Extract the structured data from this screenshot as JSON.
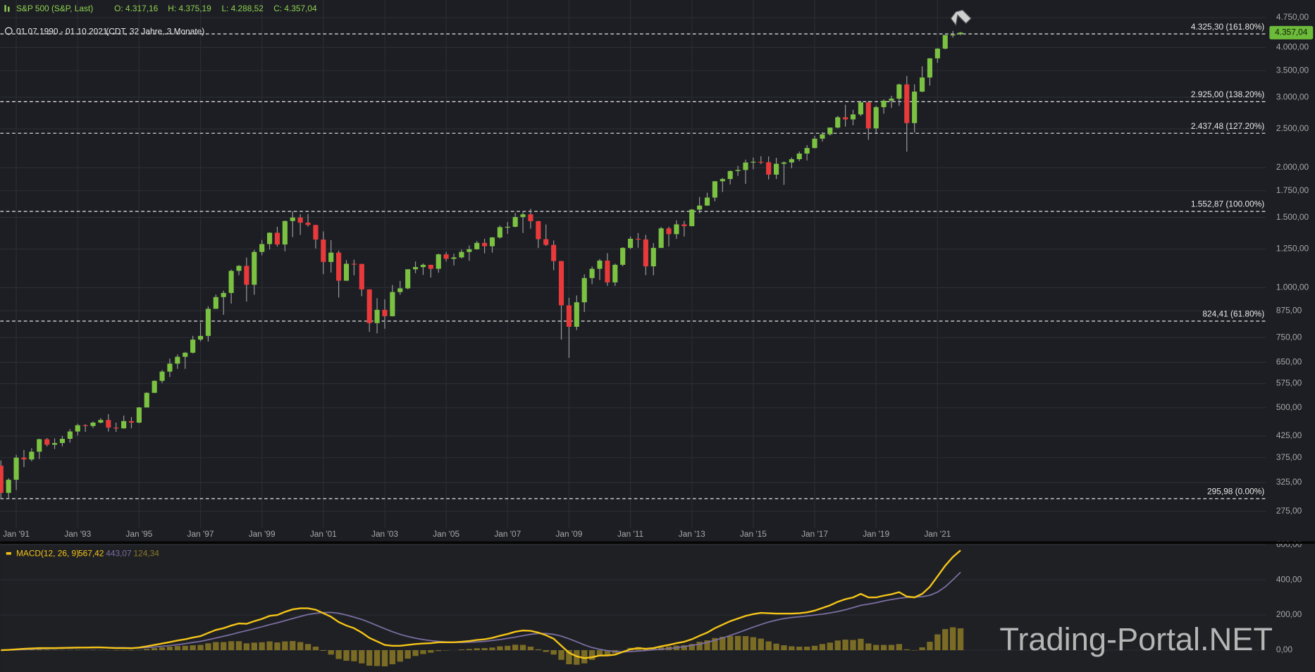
{
  "chart_data": [
    {
      "type": "candlestick",
      "title": "S&P 500 (S&P, Last)",
      "ohlc_labels": [
        "O: 4.317,16",
        "H: 4.375,19",
        "L: 4.288,52",
        "C: 4.357,04"
      ],
      "period": "01.07.1990 - 01.10.2021",
      "period_note": "(CDT, 32 Jahre, 3 Monate)",
      "last_price_label": "4.357,04",
      "up_color": "#7cc242",
      "down_color": "#e8393b",
      "grid": true,
      "log_scale": true,
      "xlim": [
        1990.48,
        2031.7
      ],
      "xticks": [
        {
          "value": 1991,
          "label": "Jan '91"
        },
        {
          "value": 1993,
          "label": "Jan '93"
        },
        {
          "value": 1995,
          "label": "Jan '95"
        },
        {
          "value": 1997,
          "label": "Jan '97"
        },
        {
          "value": 1999,
          "label": "Jan '99"
        },
        {
          "value": 2001,
          "label": "Jan '01"
        },
        {
          "value": 2003,
          "label": "Jan '03"
        },
        {
          "value": 2005,
          "label": "Jan '05"
        },
        {
          "value": 2007,
          "label": "Jan '07"
        },
        {
          "value": 2009,
          "label": "Jan '09"
        },
        {
          "value": 2011,
          "label": "Jan '11"
        },
        {
          "value": 2013,
          "label": "Jan '13"
        },
        {
          "value": 2015,
          "label": "Jan '15"
        },
        {
          "value": 2017,
          "label": "Jan '17"
        },
        {
          "value": 2019,
          "label": "Jan '19"
        },
        {
          "value": 2021,
          "label": "Jan '21"
        }
      ],
      "ylim": [
        250,
        5260
      ],
      "yticks": [
        {
          "value": 275,
          "label": "275,00"
        },
        {
          "value": 325,
          "label": "325,00"
        },
        {
          "value": 375,
          "label": "375,00"
        },
        {
          "value": 425,
          "label": "425,00"
        },
        {
          "value": 500,
          "label": "500,00"
        },
        {
          "value": 575,
          "label": "575,00"
        },
        {
          "value": 650,
          "label": "650,00"
        },
        {
          "value": 750,
          "label": "750,00"
        },
        {
          "value": 875,
          "label": "875,00"
        },
        {
          "value": 1000,
          "label": "1.000,00"
        },
        {
          "value": 1250,
          "label": "1.250,00"
        },
        {
          "value": 1500,
          "label": "1.500,00"
        },
        {
          "value": 1750,
          "label": "1.750,00"
        },
        {
          "value": 2000,
          "label": "2.000,00"
        },
        {
          "value": 2500,
          "label": "2.500,00"
        },
        {
          "value": 3000,
          "label": "3.000,00"
        },
        {
          "value": 3500,
          "label": "3.500,00"
        },
        {
          "value": 4000,
          "label": "4.000,00"
        },
        {
          "value": 4750,
          "label": "4.750,00"
        }
      ],
      "levels": [
        {
          "value": 4325.3,
          "label": "4.325,30 (161.80%)"
        },
        {
          "value": 2925,
          "label": "2.925,00 (138.20%)"
        },
        {
          "value": 2437.48,
          "label": "2.437,48 (127.20%)"
        },
        {
          "value": 1552.87,
          "label": "1.552,87 (100.00%)"
        },
        {
          "value": 824.41,
          "label": "824,41 (61.80%)"
        },
        {
          "value": 295.98,
          "label": "295,98 (0.00%)"
        }
      ],
      "x": [
        1990.5,
        1990.75,
        1991,
        1991.25,
        1991.5,
        1991.75,
        1992,
        1992.25,
        1992.5,
        1992.75,
        1993,
        1993.25,
        1993.5,
        1993.75,
        1994,
        1994.25,
        1994.5,
        1994.75,
        1995,
        1995.25,
        1995.5,
        1995.75,
        1996,
        1996.25,
        1996.5,
        1996.75,
        1997,
        1997.25,
        1997.5,
        1997.75,
        1998,
        1998.25,
        1998.5,
        1998.75,
        1999,
        1999.25,
        1999.5,
        1999.75,
        2000,
        2000.25,
        2000.5,
        2000.75,
        2001,
        2001.25,
        2001.5,
        2001.75,
        2002,
        2002.25,
        2002.5,
        2002.75,
        2003,
        2003.25,
        2003.5,
        2003.75,
        2004,
        2004.25,
        2004.5,
        2004.75,
        2005,
        2005.25,
        2005.5,
        2005.75,
        2006,
        2006.25,
        2006.5,
        2006.75,
        2007,
        2007.25,
        2007.5,
        2007.75,
        2008,
        2008.25,
        2008.5,
        2008.75,
        2009,
        2009.25,
        2009.5,
        2009.75,
        2010,
        2010.25,
        2010.5,
        2010.75,
        2011,
        2011.25,
        2011.5,
        2011.75,
        2012,
        2012.25,
        2012.5,
        2012.75,
        2013,
        2013.25,
        2013.5,
        2013.75,
        2014,
        2014.25,
        2014.5,
        2014.75,
        2015,
        2015.25,
        2015.5,
        2015.75,
        2016,
        2016.25,
        2016.5,
        2016.75,
        2017,
        2017.25,
        2017.5,
        2017.75,
        2018,
        2018.25,
        2018.5,
        2018.75,
        2019,
        2019.25,
        2019.5,
        2019.75,
        2020,
        2020.25,
        2020.5,
        2020.75,
        2021,
        2021.25,
        2021.5,
        2021.75
      ],
      "open": [
        358,
        306,
        330,
        375,
        371,
        388,
        417,
        404,
        408,
        418,
        436,
        452,
        450,
        459,
        466,
        446,
        444,
        463,
        459,
        501,
        545,
        584,
        616,
        645,
        671,
        687,
        741,
        757,
        885,
        947,
        970,
        1102,
        1134,
        1017,
        1229,
        1286,
        1373,
        1283,
        1469,
        1499,
        1455,
        1436,
        1320,
        1160,
        1224,
        1041,
        1148,
        1147,
        990,
        815,
        880,
        848,
        975,
        996,
        1112,
        1126,
        1141,
        1115,
        1212,
        1181,
        1191,
        1229,
        1248,
        1295,
        1270,
        1336,
        1418,
        1421,
        1503,
        1527,
        1468,
        1323,
        1280,
        1166,
        903,
        798,
        919,
        1057,
        1115,
        1169,
        1031,
        1141,
        1258,
        1326,
        1321,
        1131,
        1258,
        1408,
        1362,
        1441,
        1426,
        1569,
        1606,
        1682,
        1848,
        1872,
        1960,
        1972,
        2059,
        2068,
        2063,
        1920,
        2044,
        2060,
        2099,
        2168,
        2239,
        2363,
        2423,
        2519,
        2674,
        2641,
        2718,
        2914,
        2507,
        2834,
        2942,
        2977,
        3231,
        2585,
        3100,
        3363,
        3756,
        3973,
        4298,
        4317.16
      ],
      "high": [
        369,
        333,
        381,
        392,
        396,
        418,
        420,
        419,
        425,
        442,
        456,
        455,
        462,
        471,
        482,
        459,
        478,
        474,
        502,
        547,
        586,
        622,
        664,
        680,
        690,
        757,
        817,
        898,
        961,
        983,
        1110,
        1139,
        1190,
        1244,
        1317,
        1376,
        1421,
        1473,
        1553,
        1527,
        1530,
        1437,
        1384,
        1316,
        1239,
        1173,
        1176,
        1147,
        990,
        941,
        935,
        1015,
        1040,
        1112,
        1163,
        1150,
        1141,
        1217,
        1229,
        1217,
        1246,
        1275,
        1310,
        1326,
        1340,
        1431,
        1461,
        1540,
        1555,
        1576,
        1471,
        1440,
        1313,
        1167,
        943,
        956,
        1080,
        1130,
        1180,
        1220,
        1149,
        1263,
        1344,
        1371,
        1356,
        1293,
        1420,
        1422,
        1475,
        1470,
        1574,
        1687,
        1730,
        1849,
        1884,
        1968,
        2019,
        2093,
        2119,
        2135,
        2133,
        2116,
        2072,
        2121,
        2194,
        2277,
        2401,
        2454,
        2519,
        2694,
        2873,
        2791,
        2940,
        2940,
        2860,
        2964,
        3028,
        3247,
        3394,
        3233,
        3588,
        3760,
        3984,
        4300,
        4400,
        4375.19
      ],
      "low": [
        295,
        295,
        311,
        355,
        367,
        372,
        400,
        394,
        400,
        409,
        426,
        435,
        445,
        457,
        436,
        435,
        443,
        444,
        457,
        501,
        545,
        577,
        597,
        626,
        626,
        684,
        733,
        733,
        885,
        855,
        912,
        1074,
        923,
        960,
        1205,
        1247,
        1268,
        1233,
        1339,
        1356,
        1423,
        1254,
        1081,
        1091,
        945,
        1040,
        1074,
        952,
        775,
        768,
        789,
        847,
        960,
        990,
        1087,
        1076,
        1060,
        1090,
        1163,
        1137,
        1183,
        1168,
        1245,
        1219,
        1224,
        1327,
        1364,
        1416,
        1371,
        1406,
        1257,
        1272,
        1106,
        741,
        667,
        783,
        869,
        1020,
        1045,
        1011,
        1010,
        1131,
        1249,
        1259,
        1075,
        1074,
        1258,
        1267,
        1325,
        1343,
        1426,
        1536,
        1604,
        1646,
        1737,
        1814,
        1905,
        1821,
        1981,
        2040,
        1867,
        1872,
        1810,
        1992,
        2075,
        2084,
        2233,
        2323,
        2405,
        2509,
        2533,
        2553,
        2692,
        2347,
        2444,
        2729,
        2822,
        2856,
        2192,
        2447,
        3090,
        3209,
        3662,
        3955,
        4233,
        4288.52
      ],
      "close": [
        306,
        330,
        375,
        371,
        388,
        417,
        404,
        408,
        418,
        436,
        452,
        450,
        459,
        466,
        446,
        444,
        463,
        459,
        501,
        545,
        584,
        616,
        645,
        671,
        687,
        741,
        757,
        885,
        947,
        970,
        1102,
        1134,
        1017,
        1229,
        1286,
        1373,
        1283,
        1469,
        1499,
        1455,
        1436,
        1320,
        1160,
        1224,
        1041,
        1148,
        1147,
        990,
        815,
        880,
        848,
        975,
        996,
        1112,
        1126,
        1141,
        1115,
        1212,
        1181,
        1191,
        1229,
        1248,
        1295,
        1270,
        1336,
        1418,
        1421,
        1503,
        1527,
        1468,
        1323,
        1280,
        1166,
        903,
        798,
        919,
        1057,
        1115,
        1169,
        1031,
        1141,
        1258,
        1326,
        1321,
        1131,
        1258,
        1408,
        1362,
        1441,
        1426,
        1569,
        1606,
        1682,
        1848,
        1872,
        1960,
        1972,
        2059,
        2068,
        2063,
        1920,
        2044,
        2060,
        2099,
        2168,
        2239,
        2363,
        2423,
        2519,
        2674,
        2641,
        2718,
        2914,
        2507,
        2834,
        2942,
        2977,
        3231,
        2585,
        3100,
        3363,
        3756,
        3973,
        4298,
        4308,
        4357.04
      ]
    },
    {
      "type": "macd",
      "title": "MACD(12, 26, 9)",
      "legend_values": [
        "567,42",
        "443,07",
        "124,34"
      ],
      "ylim": [
        -124,
        600
      ],
      "yticks": [
        {
          "value": 0,
          "label": "0,00"
        },
        {
          "value": 200,
          "label": "200,00"
        },
        {
          "value": 400,
          "label": "400,00"
        },
        {
          "value": 600,
          "label": "600,00"
        }
      ],
      "series": [
        {
          "color": "#f5c518",
          "values": [
            0,
            2,
            5,
            8,
            10,
            12,
            12,
            12,
            13,
            14,
            15,
            15,
            16,
            16,
            14,
            12,
            12,
            11,
            15,
            22,
            30,
            38,
            46,
            55,
            62,
            72,
            80,
            98,
            115,
            125,
            140,
            152,
            150,
            165,
            178,
            195,
            200,
            218,
            232,
            238,
            238,
            230,
            210,
            190,
            160,
            140,
            125,
            100,
            70,
            50,
            30,
            25,
            25,
            30,
            35,
            38,
            40,
            45,
            45,
            45,
            48,
            52,
            58,
            62,
            70,
            82,
            92,
            105,
            112,
            110,
            100,
            85,
            65,
            25,
            -15,
            -35,
            -45,
            -40,
            -30,
            -30,
            -25,
            -10,
            5,
            12,
            8,
            12,
            22,
            30,
            40,
            48,
            62,
            82,
            100,
            125,
            145,
            165,
            180,
            195,
            205,
            212,
            210,
            208,
            208,
            208,
            210,
            215,
            225,
            240,
            255,
            275,
            290,
            300,
            320,
            300,
            300,
            310,
            318,
            330,
            305,
            300,
            320,
            360,
            420,
            480,
            530,
            567.42
          ]
        },
        {
          "color": "#7b6fa3",
          "values": [
            0,
            1,
            2,
            4,
            6,
            8,
            9,
            10,
            11,
            12,
            13,
            14,
            14,
            15,
            15,
            14,
            14,
            13,
            13,
            15,
            18,
            22,
            26,
            31,
            37,
            44,
            50,
            59,
            69,
            79,
            89,
            101,
            111,
            122,
            133,
            145,
            156,
            168,
            180,
            192,
            203,
            210,
            214,
            215,
            210,
            200,
            188,
            175,
            158,
            140,
            122,
            105,
            90,
            78,
            68,
            60,
            54,
            50,
            47,
            45,
            44,
            45,
            47,
            50,
            55,
            60,
            67,
            74,
            82,
            90,
            95,
            95,
            90,
            80,
            65,
            48,
            30,
            15,
            5,
            -3,
            -8,
            -10,
            -8,
            -5,
            -2,
            2,
            5,
            9,
            14,
            20,
            27,
            34,
            44,
            56,
            69,
            84,
            99,
            115,
            131,
            146,
            160,
            171,
            180,
            186,
            190,
            195,
            200,
            205,
            212,
            220,
            230,
            242,
            255,
            262,
            270,
            280,
            288,
            295,
            300,
            302,
            304,
            312,
            330,
            360,
            400,
            443.07
          ]
        },
        {
          "color": "#8c7a26",
          "values": [
            0,
            1,
            3,
            4,
            4,
            4,
            3,
            2,
            2,
            2,
            2,
            1,
            2,
            1,
            -1,
            -2,
            -2,
            -2,
            2,
            7,
            12,
            16,
            20,
            24,
            25,
            28,
            30,
            39,
            46,
            46,
            51,
            51,
            39,
            43,
            45,
            50,
            44,
            50,
            52,
            46,
            35,
            20,
            -4,
            -25,
            -50,
            -60,
            -63,
            -75,
            -88,
            -90,
            -92,
            -80,
            -65,
            -48,
            -33,
            -22,
            -14,
            -5,
            -2,
            0,
            4,
            7,
            11,
            12,
            15,
            22,
            25,
            31,
            30,
            20,
            5,
            -10,
            -25,
            -55,
            -80,
            -83,
            -75,
            -55,
            -35,
            -27,
            -17,
            0,
            13,
            17,
            10,
            10,
            17,
            21,
            26,
            28,
            35,
            48,
            56,
            69,
            76,
            81,
            81,
            80,
            74,
            66,
            50,
            37,
            28,
            22,
            20,
            20,
            25,
            35,
            43,
            55,
            60,
            58,
            65,
            38,
            30,
            30,
            30,
            35,
            5,
            -2,
            16,
            48,
            90,
            120,
            130,
            124.34
          ]
        }
      ]
    }
  ],
  "watermark": "Trading-Portal.NET"
}
